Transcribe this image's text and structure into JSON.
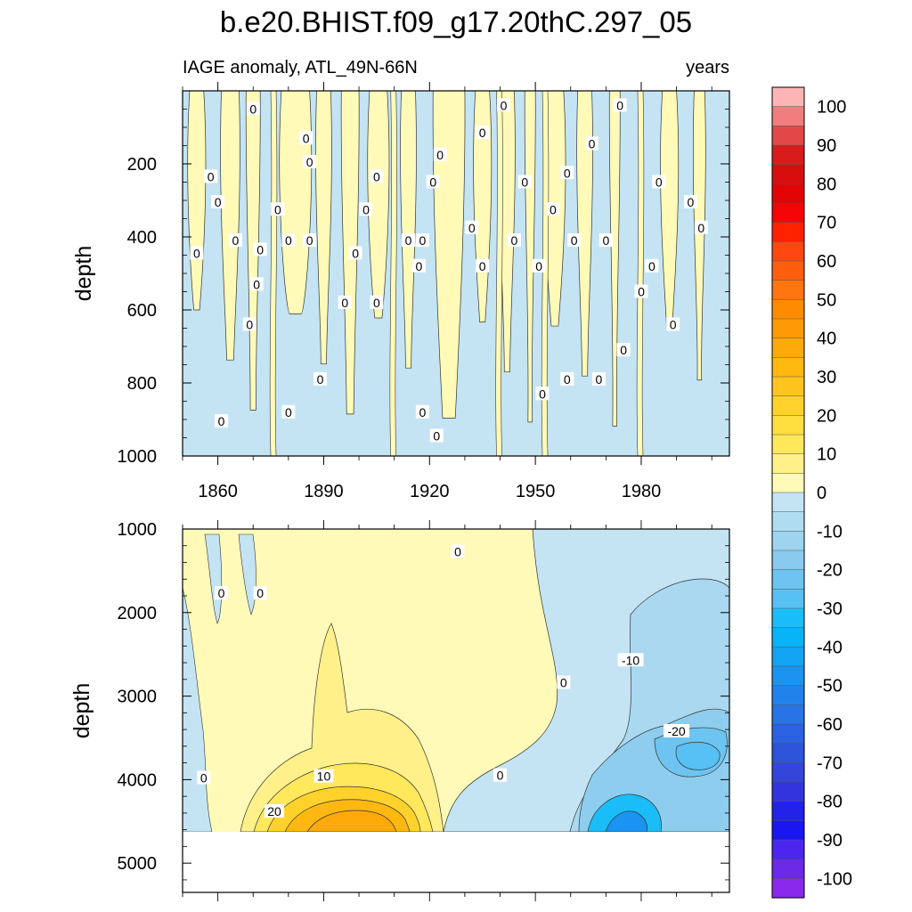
{
  "header": {
    "title": "b.e20.BHIST.f09_g17.20thC.297_05",
    "left_label": "IAGE anomaly, ATL_49N-66N",
    "right_label": "years"
  },
  "chart_data": [
    {
      "type": "heatmap",
      "panel": "upper",
      "title": "IAGE anomaly, ATL_49N-66N",
      "units": "years",
      "xlabel": "",
      "ylabel": "depth",
      "xlim": [
        1850,
        2005
      ],
      "ylim": [
        1000,
        0
      ],
      "x_ticks": [
        1860,
        1890,
        1920,
        1950,
        1980
      ],
      "x_tick_labels": [
        "1860",
        "1890",
        "1920",
        "1950",
        "1980"
      ],
      "y_ticks": [
        200,
        400,
        600,
        800,
        1000
      ],
      "y_tick_labels": [
        "200",
        "400",
        "600",
        "800",
        "1000"
      ],
      "positive_band_years": [
        [
          1852,
          1856
        ],
        [
          1861,
          1866
        ],
        [
          1868,
          1872
        ],
        [
          1878,
          1886
        ],
        [
          1888,
          1892
        ],
        [
          1895,
          1900
        ],
        [
          1903,
          1908
        ],
        [
          1912,
          1916
        ],
        [
          1921,
          1930
        ],
        [
          1933,
          1937
        ],
        [
          1940,
          1944
        ],
        [
          1947,
          1950
        ],
        [
          1953,
          1958
        ],
        [
          1962,
          1966
        ],
        [
          1971,
          1974
        ],
        [
          1986,
          1990
        ],
        [
          1995,
          1998
        ]
      ],
      "contour_labels": [
        {
          "text": "0",
          "year": 1870,
          "depth": 50
        },
        {
          "text": "0",
          "year": 1885,
          "depth": 130
        },
        {
          "text": "0",
          "year": 1886,
          "depth": 195
        },
        {
          "text": "0",
          "year": 1858,
          "depth": 235
        },
        {
          "text": "0",
          "year": 1860,
          "depth": 305
        },
        {
          "text": "0",
          "year": 1854,
          "depth": 445
        },
        {
          "text": "0",
          "year": 1865,
          "depth": 410
        },
        {
          "text": "0",
          "year": 1872,
          "depth": 435
        },
        {
          "text": "0",
          "year": 1877,
          "depth": 325
        },
        {
          "text": "0",
          "year": 1880,
          "depth": 410
        },
        {
          "text": "0",
          "year": 1871,
          "depth": 530
        },
        {
          "text": "0",
          "year": 1869,
          "depth": 640
        },
        {
          "text": "0",
          "year": 1886,
          "depth": 410
        },
        {
          "text": "0",
          "year": 1896,
          "depth": 580
        },
        {
          "text": "0",
          "year": 1899,
          "depth": 445
        },
        {
          "text": "0",
          "year": 1902,
          "depth": 325
        },
        {
          "text": "0",
          "year": 1905,
          "depth": 235
        },
        {
          "text": "0",
          "year": 1905,
          "depth": 580
        },
        {
          "text": "0",
          "year": 1889,
          "depth": 790
        },
        {
          "text": "0",
          "year": 1861,
          "depth": 905
        },
        {
          "text": "0",
          "year": 1880,
          "depth": 880
        },
        {
          "text": "0",
          "year": 1914,
          "depth": 410
        },
        {
          "text": "0",
          "year": 1921,
          "depth": 250
        },
        {
          "text": "0",
          "year": 1923,
          "depth": 175
        },
        {
          "text": "0",
          "year": 1918,
          "depth": 410
        },
        {
          "text": "0",
          "year": 1917,
          "depth": 480
        },
        {
          "text": "0",
          "year": 1918,
          "depth": 880
        },
        {
          "text": "0",
          "year": 1922,
          "depth": 945
        },
        {
          "text": "0",
          "year": 1932,
          "depth": 375
        },
        {
          "text": "0",
          "year": 1935,
          "depth": 115
        },
        {
          "text": "0",
          "year": 1935,
          "depth": 480
        },
        {
          "text": "0",
          "year": 1941,
          "depth": 40
        },
        {
          "text": "0",
          "year": 1944,
          "depth": 410
        },
        {
          "text": "0",
          "year": 1947,
          "depth": 250
        },
        {
          "text": "0",
          "year": 1951,
          "depth": 480
        },
        {
          "text": "0",
          "year": 1955,
          "depth": 325
        },
        {
          "text": "0",
          "year": 1952,
          "depth": 830
        },
        {
          "text": "0",
          "year": 1959,
          "depth": 225
        },
        {
          "text": "0",
          "year": 1961,
          "depth": 410
        },
        {
          "text": "0",
          "year": 1959,
          "depth": 790
        },
        {
          "text": "0",
          "year": 1966,
          "depth": 145
        },
        {
          "text": "0",
          "year": 1968,
          "depth": 790
        },
        {
          "text": "0",
          "year": 1970,
          "depth": 410
        },
        {
          "text": "0",
          "year": 1974,
          "depth": 40
        },
        {
          "text": "0",
          "year": 1975,
          "depth": 710
        },
        {
          "text": "0",
          "year": 1980,
          "depth": 550
        },
        {
          "text": "0",
          "year": 1983,
          "depth": 480
        },
        {
          "text": "0",
          "year": 1985,
          "depth": 250
        },
        {
          "text": "0",
          "year": 1989,
          "depth": 640
        },
        {
          "text": "0",
          "year": 1994,
          "depth": 305
        },
        {
          "text": "0",
          "year": 1997,
          "depth": 375
        }
      ]
    },
    {
      "type": "heatmap",
      "panel": "lower",
      "units": "years",
      "xlabel": "",
      "ylabel": "depth",
      "xlim": [
        1850,
        2005
      ],
      "ylim": [
        5350,
        1000
      ],
      "y_ticks": [
        1000,
        2000,
        3000,
        4000,
        5000
      ],
      "y_tick_labels": [
        "1000",
        "2000",
        "3000",
        "4000",
        "5000"
      ],
      "data_bottom_depth": 4600,
      "contour_labels": [
        {
          "text": "0",
          "year": 1861,
          "depth": 1770
        },
        {
          "text": "0",
          "year": 1872,
          "depth": 1770
        },
        {
          "text": "0",
          "year": 1928,
          "depth": 1270
        },
        {
          "text": "0",
          "year": 1958,
          "depth": 2840
        },
        {
          "text": "0",
          "year": 1940,
          "depth": 3950
        },
        {
          "text": "0",
          "year": 1856,
          "depth": 3980
        },
        {
          "text": "10",
          "year": 1890,
          "depth": 3960
        },
        {
          "text": "20",
          "year": 1876,
          "depth": 4380
        },
        {
          "text": "-10",
          "year": 1977,
          "depth": 2570
        },
        {
          "text": "-20",
          "year": 1990,
          "depth": 3420
        }
      ],
      "anomaly_regions": [
        {
          "sign": "positive",
          "year_range": [
            1865,
            1915
          ],
          "depth_range": [
            3500,
            4600
          ],
          "peak": 35
        },
        {
          "sign": "negative",
          "year_range": [
            1955,
            2005
          ],
          "depth_range": [
            2200,
            4600
          ],
          "peak": -50
        }
      ]
    }
  ],
  "colorbar": {
    "labels": [
      "100",
      "90",
      "80",
      "70",
      "60",
      "50",
      "40",
      "30",
      "20",
      "10",
      "0",
      "-10",
      "-20",
      "-30",
      "-40",
      "-50",
      "-60",
      "-70",
      "-80",
      "-90",
      "-100"
    ],
    "colors": [
      "#fcb4b4",
      "#f07e7e",
      "#e24848",
      "#d81c1c",
      "#d60e0e",
      "#e30505",
      "#f50505",
      "#ff2200",
      "#ff4711",
      "#ff5e0e",
      "#ff7510",
      "#ff8c00",
      "#ff9a07",
      "#ffa90a",
      "#ffb80f",
      "#ffc51e",
      "#ffd22b",
      "#ffde40",
      "#ffe85c",
      "#fff08a",
      "#fffab8",
      "#c4e4f4",
      "#b0dcf0",
      "#9ed4ee",
      "#89caee",
      "#6ec4f0",
      "#57c0f5",
      "#1bbdf8",
      "#08b4f6",
      "#13a4f4",
      "#1b93f0",
      "#2282ec",
      "#2873e6",
      "#2a62e0",
      "#2e55d8",
      "#3545d8",
      "#3434de",
      "#2222e8",
      "#1a16f0",
      "#4a26ee",
      "#6a2ae8",
      "#8a28ec"
    ]
  }
}
